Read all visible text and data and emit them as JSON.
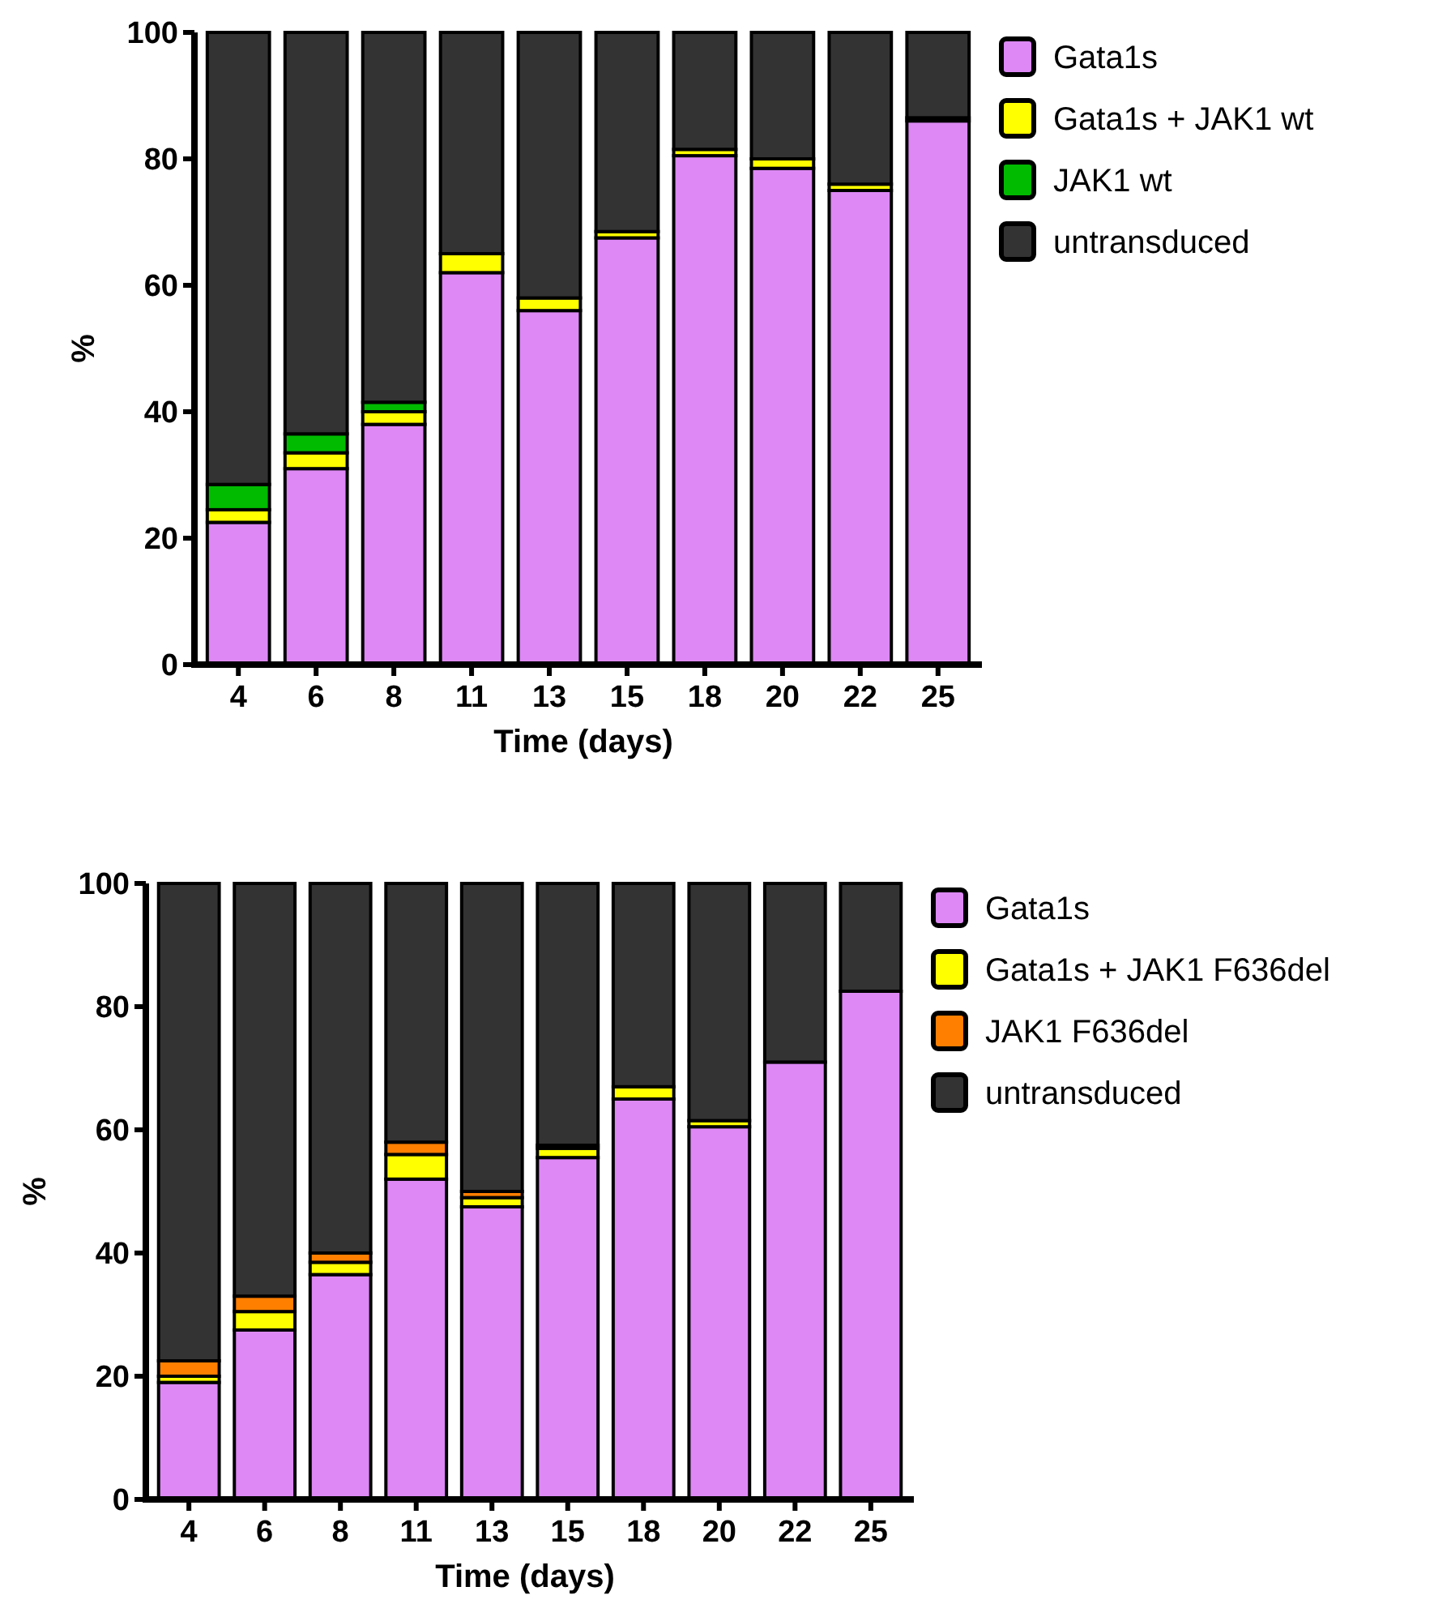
{
  "chart_data": [
    {
      "type": "bar",
      "stacked": true,
      "xlabel": "Time (days)",
      "ylabel": "%",
      "categories": [
        "4",
        "6",
        "8",
        "11",
        "13",
        "15",
        "18",
        "20",
        "22",
        "25"
      ],
      "ylim": [
        0,
        100
      ],
      "yticks": [
        0,
        20,
        40,
        60,
        80,
        100
      ],
      "legend": "right",
      "series": [
        {
          "name": "Gata1s",
          "color": "#dd88f5",
          "values": [
            22.5,
            31,
            38,
            62,
            56,
            67.5,
            80.5,
            78.5,
            75,
            86
          ]
        },
        {
          "name": "Gata1s + JAK1 wt",
          "color": "#ffff00",
          "values": [
            2,
            2.5,
            2,
            3,
            2,
            1,
            1,
            1.5,
            1,
            0.5
          ]
        },
        {
          "name": "JAK1 wt",
          "color": "#00bb00",
          "values": [
            4,
            3,
            1.5,
            0,
            0,
            0,
            0,
            0,
            0,
            0
          ]
        },
        {
          "name": "untransduced",
          "color": "#333333",
          "values": [
            71.5,
            63.5,
            58.5,
            35,
            42,
            31.5,
            18.5,
            20,
            24,
            13.5
          ]
        }
      ]
    },
    {
      "type": "bar",
      "stacked": true,
      "xlabel": "Time (days)",
      "ylabel": "%",
      "categories": [
        "4",
        "6",
        "8",
        "11",
        "13",
        "15",
        "18",
        "20",
        "22",
        "25"
      ],
      "ylim": [
        0,
        100
      ],
      "yticks": [
        0,
        20,
        40,
        60,
        80,
        100
      ],
      "legend": "right",
      "series": [
        {
          "name": "Gata1s",
          "color": "#dd88f5",
          "values": [
            19,
            27.5,
            36.5,
            52,
            47.5,
            55.5,
            65,
            60.5,
            71,
            82.5
          ]
        },
        {
          "name": "Gata1s + JAK1 F636del",
          "color": "#ffff00",
          "values": [
            1,
            3,
            2,
            4,
            1.5,
            1.5,
            2,
            1,
            0,
            0
          ]
        },
        {
          "name": "JAK1 F636del",
          "color": "#ff7f00",
          "values": [
            2.5,
            2.5,
            1.5,
            2,
            1,
            0.5,
            0,
            0,
            0,
            0
          ]
        },
        {
          "name": "untransduced",
          "color": "#333333",
          "values": [
            77.5,
            67,
            60,
            42,
            50,
            42.5,
            33,
            38.5,
            29,
            17.5
          ]
        }
      ]
    }
  ]
}
